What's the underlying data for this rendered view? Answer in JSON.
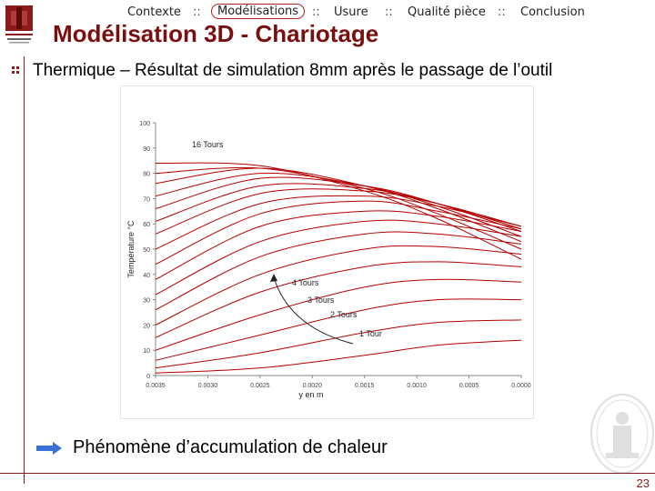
{
  "nav": {
    "items": [
      "Contexte",
      "Modélisations",
      "Usure",
      "Qualité pièce",
      "Conclusion"
    ],
    "separator": "::",
    "active_index": 1
  },
  "logo": {
    "label": "Université de Bordeaux"
  },
  "title": "Modélisation 3D - Chariotage",
  "subtitle": "Thermique – Résultat de simulation 8mm après le passage de l’outil",
  "chart_data": {
    "type": "line",
    "xlabel": "y en m",
    "ylabel": "Température °C",
    "xlim": [
      0.0035,
      0.0
    ],
    "ylim": [
      0,
      100
    ],
    "x_ticks": [
      "0.0035",
      "0.0030",
      "0.0025",
      "0.0020",
      "0.0015",
      "0.0010",
      "0.0005",
      "0.0000"
    ],
    "y_ticks": [
      "0",
      "10",
      "20",
      "30",
      "40",
      "50",
      "60",
      "70",
      "80",
      "90",
      "100"
    ],
    "annotations": [
      "16 Tours",
      "4 Tours",
      "3 Tours",
      "2 Tours",
      "1 Tour"
    ],
    "series": [
      {
        "values": [
          {
            "x": 0.0035,
            "y": 1
          },
          {
            "x": 0.0025,
            "y": 3
          },
          {
            "x": 0.0015,
            "y": 8
          },
          {
            "x": 0.0008,
            "y": 12
          },
          {
            "x": 0.0,
            "y": 14
          }
        ]
      },
      {
        "values": [
          {
            "x": 0.0035,
            "y": 3
          },
          {
            "x": 0.0025,
            "y": 9
          },
          {
            "x": 0.0015,
            "y": 17
          },
          {
            "x": 0.0008,
            "y": 21
          },
          {
            "x": 0.0,
            "y": 22
          }
        ]
      },
      {
        "values": [
          {
            "x": 0.0035,
            "y": 6
          },
          {
            "x": 0.0025,
            "y": 16
          },
          {
            "x": 0.0015,
            "y": 26
          },
          {
            "x": 0.0008,
            "y": 30
          },
          {
            "x": 0.0,
            "y": 30
          }
        ]
      },
      {
        "values": [
          {
            "x": 0.0035,
            "y": 10
          },
          {
            "x": 0.0025,
            "y": 24
          },
          {
            "x": 0.0015,
            "y": 35
          },
          {
            "x": 0.0008,
            "y": 38
          },
          {
            "x": 0.0,
            "y": 37
          }
        ]
      },
      {
        "values": [
          {
            "x": 0.0035,
            "y": 15
          },
          {
            "x": 0.0025,
            "y": 33
          },
          {
            "x": 0.0015,
            "y": 43
          },
          {
            "x": 0.0008,
            "y": 45
          },
          {
            "x": 0.0,
            "y": 43
          }
        ]
      },
      {
        "values": [
          {
            "x": 0.0035,
            "y": 20
          },
          {
            "x": 0.0025,
            "y": 40
          },
          {
            "x": 0.0015,
            "y": 50
          },
          {
            "x": 0.0008,
            "y": 51
          },
          {
            "x": 0.0,
            "y": 48
          }
        ]
      },
      {
        "values": [
          {
            "x": 0.0035,
            "y": 26
          },
          {
            "x": 0.0025,
            "y": 47
          },
          {
            "x": 0.0015,
            "y": 56
          },
          {
            "x": 0.0008,
            "y": 56
          },
          {
            "x": 0.0,
            "y": 52
          }
        ]
      },
      {
        "values": [
          {
            "x": 0.0035,
            "y": 32
          },
          {
            "x": 0.0025,
            "y": 53
          },
          {
            "x": 0.0015,
            "y": 61
          },
          {
            "x": 0.0008,
            "y": 60
          },
          {
            "x": 0.0,
            "y": 55
          }
        ]
      },
      {
        "values": [
          {
            "x": 0.0035,
            "y": 38
          },
          {
            "x": 0.0025,
            "y": 59
          },
          {
            "x": 0.0015,
            "y": 65
          },
          {
            "x": 0.0008,
            "y": 63
          },
          {
            "x": 0.0,
            "y": 57
          }
        ]
      },
      {
        "values": [
          {
            "x": 0.0035,
            "y": 44
          },
          {
            "x": 0.0025,
            "y": 64
          },
          {
            "x": 0.0015,
            "y": 69
          },
          {
            "x": 0.0008,
            "y": 65
          },
          {
            "x": 0.0,
            "y": 58
          }
        ]
      },
      {
        "values": [
          {
            "x": 0.0035,
            "y": 50
          },
          {
            "x": 0.0025,
            "y": 68
          },
          {
            "x": 0.0015,
            "y": 71
          },
          {
            "x": 0.0008,
            "y": 67
          },
          {
            "x": 0.0,
            "y": 59
          }
        ]
      },
      {
        "values": [
          {
            "x": 0.0035,
            "y": 56
          },
          {
            "x": 0.0025,
            "y": 72
          },
          {
            "x": 0.0015,
            "y": 73
          },
          {
            "x": 0.0008,
            "y": 68
          },
          {
            "x": 0.0,
            "y": 59
          }
        ]
      },
      {
        "values": [
          {
            "x": 0.0035,
            "y": 61
          },
          {
            "x": 0.0025,
            "y": 75
          },
          {
            "x": 0.0015,
            "y": 74
          },
          {
            "x": 0.0008,
            "y": 68
          },
          {
            "x": 0.0,
            "y": 58
          }
        ]
      },
      {
        "values": [
          {
            "x": 0.0035,
            "y": 66
          },
          {
            "x": 0.0025,
            "y": 78
          },
          {
            "x": 0.0015,
            "y": 75
          },
          {
            "x": 0.0008,
            "y": 68
          },
          {
            "x": 0.0,
            "y": 57
          }
        ]
      },
      {
        "values": [
          {
            "x": 0.0035,
            "y": 71
          },
          {
            "x": 0.0025,
            "y": 80
          },
          {
            "x": 0.0015,
            "y": 75
          },
          {
            "x": 0.0008,
            "y": 67
          },
          {
            "x": 0.0,
            "y": 55
          }
        ]
      },
      {
        "values": [
          {
            "x": 0.0035,
            "y": 76
          },
          {
            "x": 0.0025,
            "y": 82
          },
          {
            "x": 0.0015,
            "y": 75
          },
          {
            "x": 0.0008,
            "y": 66
          },
          {
            "x": 0.0,
            "y": 53
          }
        ]
      },
      {
        "values": [
          {
            "x": 0.0035,
            "y": 80
          },
          {
            "x": 0.0025,
            "y": 82
          },
          {
            "x": 0.0015,
            "y": 74
          },
          {
            "x": 0.0008,
            "y": 64
          },
          {
            "x": 0.0,
            "y": 50
          }
        ]
      },
      {
        "values": [
          {
            "x": 0.0035,
            "y": 84
          },
          {
            "x": 0.0025,
            "y": 83
          },
          {
            "x": 0.0015,
            "y": 73
          },
          {
            "x": 0.0008,
            "y": 62
          },
          {
            "x": 0.0,
            "y": 46
          }
        ]
      }
    ],
    "colors": {
      "line": "#b40000",
      "axis": "#888888",
      "annotation": "#222222"
    }
  },
  "conclusion": "Phénomène d’accumulation de chaleur",
  "page_number": "23",
  "colors": {
    "accent": "#8b1a1a",
    "title": "#7a0f0f",
    "arrow": "#3a6fd6"
  }
}
